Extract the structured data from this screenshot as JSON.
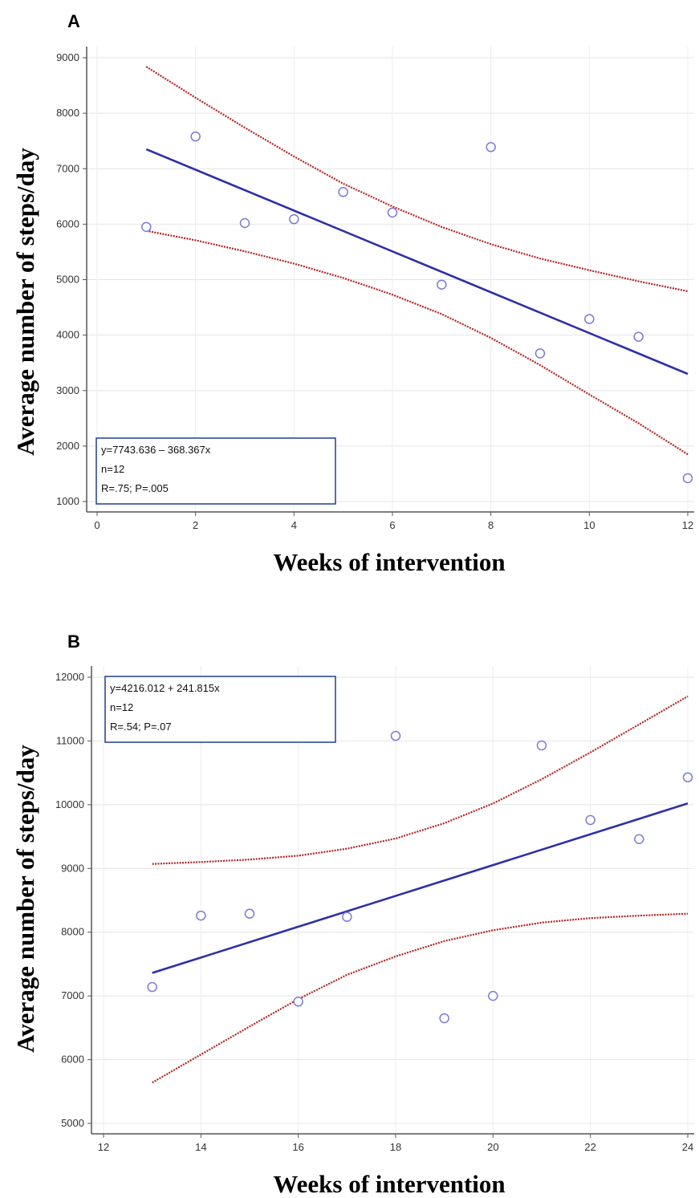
{
  "chart_data": [
    {
      "type": "scatter",
      "panel": "A",
      "xlabel": "Weeks of intervention",
      "ylabel": "Average number of steps/day",
      "xlim": [
        0,
        12
      ],
      "ylim": [
        1000,
        9000
      ],
      "xticks": [
        0,
        2,
        4,
        6,
        8,
        10,
        12
      ],
      "yticks": [
        1000,
        2000,
        3000,
        4000,
        5000,
        6000,
        7000,
        8000,
        9000
      ],
      "grid": true,
      "points": [
        {
          "x": 1,
          "y": 5950
        },
        {
          "x": 2,
          "y": 7580
        },
        {
          "x": 3,
          "y": 6020
        },
        {
          "x": 4,
          "y": 6090
        },
        {
          "x": 5,
          "y": 6580
        },
        {
          "x": 6,
          "y": 6210
        },
        {
          "x": 7,
          "y": 4910
        },
        {
          "x": 8,
          "y": 7390
        },
        {
          "x": 9,
          "y": 3670
        },
        {
          "x": 10,
          "y": 4290
        },
        {
          "x": 11,
          "y": 3970
        },
        {
          "x": 12,
          "y": 1420
        }
      ],
      "fit_line": {
        "x": [
          1,
          12
        ],
        "y": [
          7350,
          3300
        ]
      },
      "ci_upper": {
        "x": [
          1,
          2,
          3,
          4,
          5,
          6,
          7,
          8,
          9,
          10,
          11,
          12
        ],
        "y": [
          8840,
          8280,
          7740,
          7220,
          6730,
          6320,
          5950,
          5640,
          5380,
          5170,
          4970,
          4790
        ]
      },
      "ci_lower": {
        "x": [
          1,
          2,
          3,
          4,
          5,
          6,
          7,
          8,
          9,
          10,
          11,
          12
        ],
        "y": [
          5880,
          5710,
          5510,
          5290,
          5030,
          4730,
          4380,
          3950,
          3460,
          2930,
          2410,
          1850
        ]
      },
      "stats_box": {
        "equation": "y=7743.636 – 368.367x",
        "n": "n=12",
        "r_p": "R=.75; P=.005",
        "position": "bottom-left"
      },
      "colors": {
        "points": "#7b7bd6",
        "fit": "#2f2fa8",
        "ci": "#b22222",
        "box_border": "#1f3f8f"
      }
    },
    {
      "type": "scatter",
      "panel": "B",
      "xlabel": "Weeks of intervention",
      "ylabel": "Average number of steps/day",
      "xlim": [
        12,
        24
      ],
      "ylim": [
        5000,
        12000
      ],
      "xticks": [
        12,
        14,
        16,
        18,
        20,
        22,
        24
      ],
      "yticks": [
        5000,
        6000,
        7000,
        8000,
        9000,
        10000,
        11000,
        12000
      ],
      "grid": true,
      "points": [
        {
          "x": 13,
          "y": 7140
        },
        {
          "x": 14,
          "y": 8260
        },
        {
          "x": 15,
          "y": 8290
        },
        {
          "x": 16,
          "y": 6910
        },
        {
          "x": 17,
          "y": 8240
        },
        {
          "x": 18,
          "y": 11080
        },
        {
          "x": 19,
          "y": 6650
        },
        {
          "x": 20,
          "y": 7000
        },
        {
          "x": 21,
          "y": 10930
        },
        {
          "x": 22,
          "y": 9760
        },
        {
          "x": 23,
          "y": 9460
        },
        {
          "x": 24,
          "y": 10430
        }
      ],
      "fit_line": {
        "x": [
          13,
          24
        ],
        "y": [
          7360,
          10020
        ]
      },
      "ci_upper": {
        "x": [
          13,
          14,
          15,
          16,
          17,
          18,
          19,
          20,
          21,
          22,
          23,
          24
        ],
        "y": [
          9070,
          9100,
          9140,
          9200,
          9310,
          9470,
          9710,
          10020,
          10400,
          10820,
          11260,
          11700
        ]
      },
      "ci_lower": {
        "x": [
          13,
          14,
          15,
          16,
          17,
          18,
          19,
          20,
          21,
          22,
          23,
          24
        ],
        "y": [
          5640,
          6080,
          6520,
          6950,
          7330,
          7620,
          7860,
          8030,
          8150,
          8220,
          8260,
          8290
        ]
      },
      "stats_box": {
        "equation": "y=4216.012 + 241.815x",
        "n": "n=12",
        "r_p": "R=.54; P=.07",
        "position": "top-left"
      },
      "colors": {
        "points": "#7b7bd6",
        "fit": "#2f2fa8",
        "ci": "#b22222",
        "box_border": "#1f3f8f"
      }
    }
  ]
}
